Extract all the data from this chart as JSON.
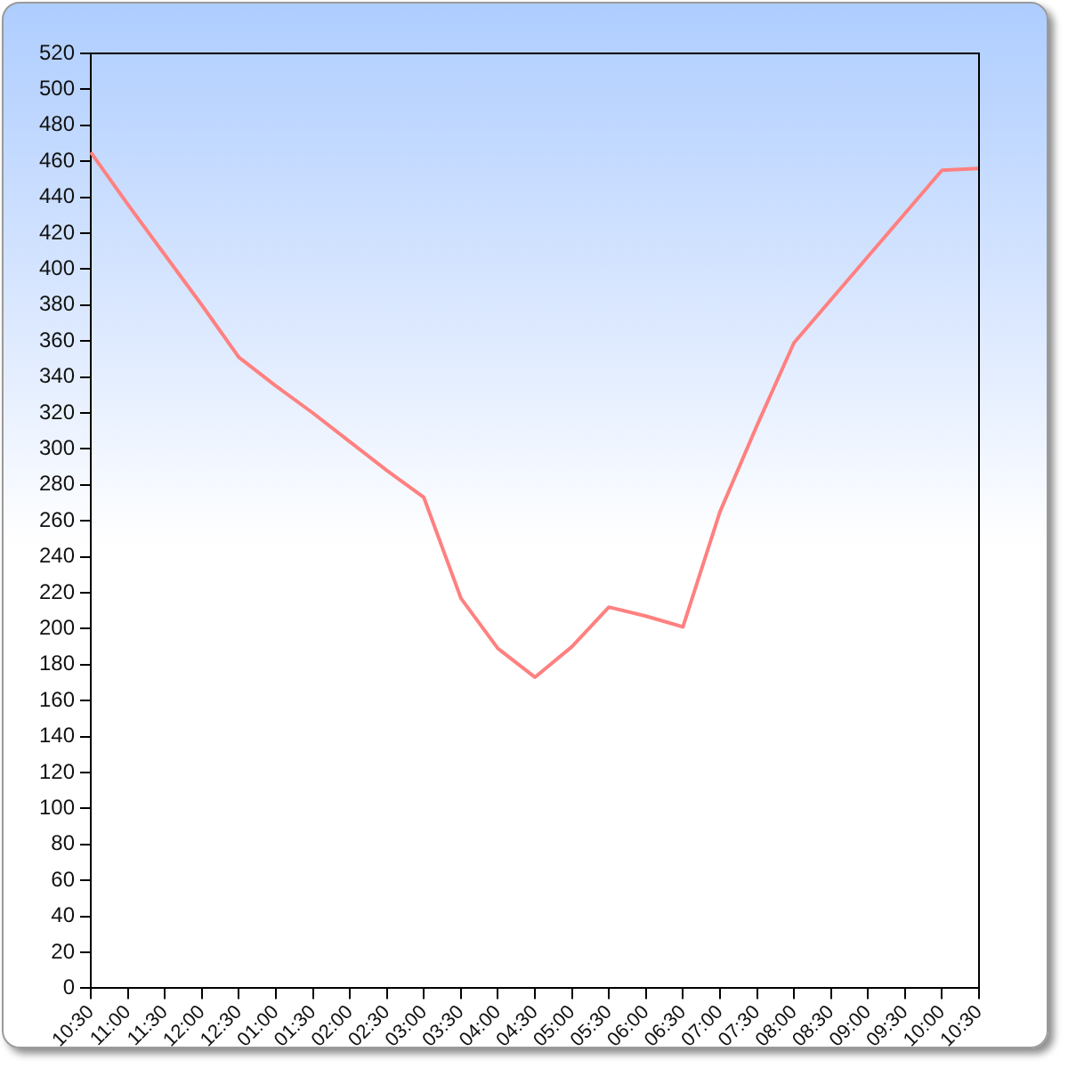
{
  "chart_data": {
    "type": "line",
    "categories": [
      "10:30",
      "11:00",
      "11:30",
      "12:00",
      "12:30",
      "01:00",
      "01:30",
      "02:00",
      "02:30",
      "03:00",
      "03:30",
      "04:00",
      "04:30",
      "05:00",
      "05:30",
      "06:00",
      "06:30",
      "07:00",
      "07:30",
      "08:00",
      "08:30",
      "09:00",
      "09:30",
      "10:00",
      "10:30"
    ],
    "values": [
      465,
      436,
      408,
      380,
      351,
      335,
      320,
      304,
      288,
      273,
      217,
      189,
      173,
      190,
      212,
      207,
      201,
      265,
      313,
      359,
      383,
      407,
      431,
      455,
      456
    ],
    "color": "#ff8080",
    "ylim": [
      0,
      520
    ],
    "yticks": [
      0,
      20,
      40,
      60,
      80,
      100,
      120,
      140,
      160,
      180,
      200,
      220,
      240,
      260,
      280,
      300,
      320,
      340,
      360,
      380,
      400,
      420,
      440,
      460,
      480,
      500,
      520
    ]
  }
}
